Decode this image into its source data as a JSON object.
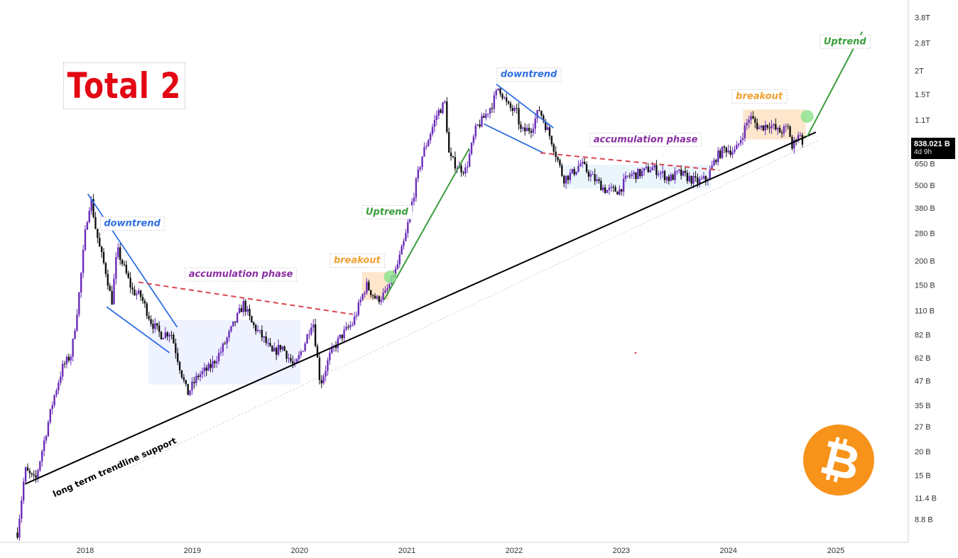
{
  "header": {
    "title": "Total 2"
  },
  "price_tag": {
    "value": "838.021 B",
    "countdown": "4d 9h"
  },
  "logo": {
    "icon": "bitcoin-logo-icon",
    "color": "#f7931a"
  },
  "colors": {
    "bull": "#6a2bb8",
    "bear": "#111111",
    "trend_support": "#000000",
    "downtrend": "#2f6fe0",
    "uptrend": "#3a9d3a",
    "resistance": "#d9464e",
    "breakout": "#f0a030",
    "accumulation_text": "#8b2fa3"
  },
  "chart_data": {
    "type": "candlestick",
    "title": "Total 2",
    "scale": "log",
    "y_ticks": [
      "3.8T",
      "2.8T",
      "2T",
      "1.5T",
      "1.1T",
      "650 B",
      "500 B",
      "380 B",
      "280 B",
      "200 B",
      "150 B",
      "110 B",
      "82 B",
      "62 B",
      "47 B",
      "35 B",
      "27 B",
      "20 B",
      "15 B",
      "11.4 B",
      "8.8 B"
    ],
    "x_ticks": [
      "2018",
      "2019",
      "2020",
      "2021",
      "2022",
      "2023",
      "2024",
      "2025"
    ],
    "last_value": "838.021 B",
    "close_path": [
      [
        "2017-05-15",
        7.5
      ],
      [
        "2017-06-10",
        16
      ],
      [
        "2017-07-15",
        14
      ],
      [
        "2017-08-20",
        25
      ],
      [
        "2017-09-15",
        38
      ],
      [
        "2017-10-15",
        55
      ],
      [
        "2017-11-15",
        65
      ],
      [
        "2017-12-10",
        130
      ],
      [
        "2018-01-05",
        320
      ],
      [
        "2018-01-20",
        430
      ],
      [
        "2018-02-05",
        300
      ],
      [
        "2018-02-20",
        230
      ],
      [
        "2018-03-15",
        170
      ],
      [
        "2018-04-01",
        120
      ],
      [
        "2018-04-20",
        230
      ],
      [
        "2018-05-10",
        190
      ],
      [
        "2018-06-10",
        140
      ],
      [
        "2018-07-10",
        130
      ],
      [
        "2018-08-15",
        95
      ],
      [
        "2018-09-15",
        82
      ],
      [
        "2018-10-20",
        85
      ],
      [
        "2018-11-20",
        55
      ],
      [
        "2018-12-15",
        40
      ],
      [
        "2019-01-20",
        50
      ],
      [
        "2019-03-01",
        55
      ],
      [
        "2019-04-10",
        68
      ],
      [
        "2019-05-10",
        85
      ],
      [
        "2019-06-25",
        120
      ],
      [
        "2019-07-20",
        95
      ],
      [
        "2019-09-01",
        78
      ],
      [
        "2019-10-01",
        65
      ],
      [
        "2019-11-01",
        72
      ],
      [
        "2019-12-15",
        55
      ],
      [
        "2020-01-20",
        75
      ],
      [
        "2020-02-15",
        100
      ],
      [
        "2020-03-12",
        45
      ],
      [
        "2020-04-15",
        65
      ],
      [
        "2020-05-20",
        80
      ],
      [
        "2020-07-01",
        95
      ],
      [
        "2020-08-15",
        150
      ],
      [
        "2020-09-20",
        125
      ],
      [
        "2020-10-20",
        135
      ],
      [
        "2020-11-25",
        180
      ],
      [
        "2020-12-25",
        260
      ],
      [
        "2021-01-20",
        420
      ],
      [
        "2021-02-20",
        700
      ],
      [
        "2021-04-15",
        1200
      ],
      [
        "2021-05-10",
        1350
      ],
      [
        "2021-05-25",
        700
      ],
      [
        "2021-06-25",
        620
      ],
      [
        "2021-07-20",
        600
      ],
      [
        "2021-08-25",
        1000
      ],
      [
        "2021-09-15",
        1100
      ],
      [
        "2021-10-20",
        1350
      ],
      [
        "2021-11-10",
        1650
      ],
      [
        "2021-12-10",
        1300
      ],
      [
        "2022-01-10",
        1200
      ],
      [
        "2022-01-25",
        950
      ],
      [
        "2022-03-01",
        1000
      ],
      [
        "2022-03-28",
        1250
      ],
      [
        "2022-05-10",
        850
      ],
      [
        "2022-06-18",
        540
      ],
      [
        "2022-07-20",
        580
      ],
      [
        "2022-08-15",
        650
      ],
      [
        "2022-09-20",
        560
      ],
      [
        "2022-11-10",
        470
      ],
      [
        "2022-12-25",
        470
      ],
      [
        "2023-01-25",
        560
      ],
      [
        "2023-03-10",
        580
      ],
      [
        "2023-04-15",
        620
      ],
      [
        "2023-06-15",
        540
      ],
      [
        "2023-07-15",
        580
      ],
      [
        "2023-09-15",
        520
      ],
      [
        "2023-10-20",
        540
      ],
      [
        "2023-11-20",
        700
      ],
      [
        "2023-12-20",
        780
      ],
      [
        "2024-01-25",
        750
      ],
      [
        "2024-03-13",
        1150
      ],
      [
        "2024-04-15",
        1000
      ],
      [
        "2024-05-20",
        1050
      ],
      [
        "2024-06-20",
        950
      ],
      [
        "2024-07-25",
        1000
      ],
      [
        "2024-08-05",
        780
      ],
      [
        "2024-08-25",
        950
      ],
      [
        "2024-09-12",
        838
      ]
    ],
    "trendlines": [
      {
        "name": "long term trendline support",
        "kind": "support",
        "from": [
          "2017-06-10",
          13.5
        ],
        "to": [
          "2024-10-25",
          950
        ]
      },
      {
        "name": "downtrend",
        "kind": "channel-2018-upper",
        "from": [
          "2018-01-10",
          450
        ],
        "to": [
          "2018-11-10",
          90
        ]
      },
      {
        "name": "downtrend",
        "kind": "channel-2018-lower",
        "from": [
          "2018-03-15",
          115
        ],
        "to": [
          "2018-10-15",
          66
        ]
      },
      {
        "name": "accumulation phase",
        "kind": "resistance-2019",
        "from": [
          "2018-07-01",
          155
        ],
        "to": [
          "2020-07-01",
          105
        ]
      },
      {
        "name": "Uptrend",
        "kind": "uptrend-2021",
        "from": [
          "2020-10-15",
          125
        ],
        "to": [
          "2021-08-01",
          780
        ]
      },
      {
        "name": "downtrend",
        "kind": "channel-2022-upper",
        "from": [
          "2021-11-01",
          1700
        ],
        "to": [
          "2022-05-15",
          1000
        ]
      },
      {
        "name": "downtrend",
        "kind": "channel-2022-lower",
        "from": [
          "2021-09-20",
          1050
        ],
        "to": [
          "2022-04-10",
          740
        ]
      },
      {
        "name": "accumulation phase",
        "kind": "resistance-2023",
        "from": [
          "2022-04-01",
          740
        ],
        "to": [
          "2023-12-01",
          600
        ]
      },
      {
        "name": "Uptrend",
        "kind": "uptrend-2025",
        "from": [
          "2024-09-25",
          900
        ],
        "to": [
          "2025-04-01",
          3200
        ]
      }
    ],
    "zones": [
      {
        "name": "accumulation-2019",
        "from": [
          "2018-08-05",
          98
        ],
        "to": [
          "2020-01-05",
          45
        ]
      },
      {
        "name": "accumulation-2023",
        "from": [
          "2022-06-20",
          640
        ],
        "to": [
          "2023-11-01",
          480
        ]
      },
      {
        "name": "breakout-2020",
        "from": [
          "2020-08-01",
          175
        ],
        "to": [
          "2020-11-01",
          125
        ]
      },
      {
        "name": "breakout-2024",
        "from": [
          "2024-02-20",
          1250
        ],
        "to": [
          "2024-09-20",
          870
        ]
      }
    ],
    "markers": [
      {
        "name": "breakout-dot-2020",
        "at": [
          "2020-11-05",
          165
        ]
      },
      {
        "name": "breakout-dot-2024",
        "at": [
          "2024-09-25",
          1150
        ]
      }
    ],
    "annotations": [
      {
        "text": "downtrend",
        "at": [
          "2018-06-10",
          305
        ],
        "color": "#2f6fe0",
        "boxed": true
      },
      {
        "text": "accumulation phase",
        "at": [
          "2019-06-15",
          165
        ],
        "color": "#8b2fa3",
        "boxed": true
      },
      {
        "text": "breakout",
        "at": [
          "2020-07-15",
          195
        ],
        "color": "#f0a030",
        "boxed": true
      },
      {
        "text": "Uptrend",
        "at": [
          "2020-10-25",
          350
        ],
        "color": "#3a9d3a",
        "boxed": true
      },
      {
        "text": "downtrend",
        "at": [
          "2022-02-20",
          1850
        ],
        "color": "#2f6fe0",
        "boxed": true
      },
      {
        "text": "accumulation phase",
        "at": [
          "2023-03-25",
          840
        ],
        "color": "#8b2fa3",
        "boxed": true
      },
      {
        "text": "breakout",
        "at": [
          "2024-04-15",
          1420
        ],
        "color": "#f0a030",
        "boxed": true
      },
      {
        "text": "Uptrend",
        "at": [
          "2025-02-01",
          2750
        ],
        "color": "#3a9d3a",
        "boxed": true
      },
      {
        "text": "long term trendline support",
        "at": [
          "2018-04-15",
          16
        ],
        "color": "#000000",
        "boxed": false,
        "rotated": true
      }
    ]
  }
}
